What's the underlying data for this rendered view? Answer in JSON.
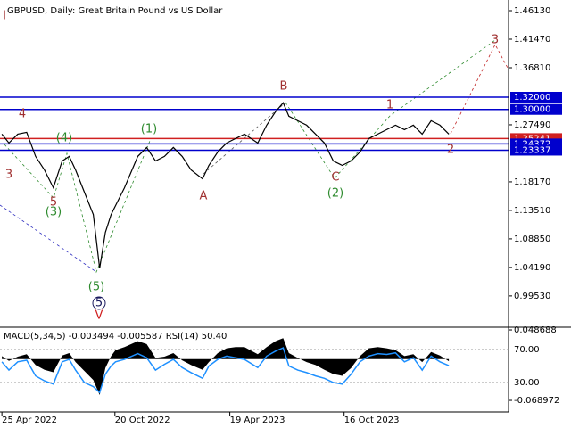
{
  "chart_data": {
    "type": "line",
    "title": "GBPUSD, Daily:  Great Britain Pound vs US Dollar",
    "x": [
      "2022-04-25",
      "2022-05-06",
      "2022-05-20",
      "2022-06-03",
      "2022-06-17",
      "2022-07-01",
      "2022-07-15",
      "2022-07-29",
      "2022-08-09",
      "2022-08-19",
      "2022-09-02",
      "2022-09-16",
      "2022-09-26",
      "2022-10-05",
      "2022-10-14",
      "2022-10-21",
      "2022-11-04",
      "2022-11-25",
      "2022-12-09",
      "2022-12-23",
      "2023-01-06",
      "2023-01-20",
      "2023-02-03",
      "2023-02-17",
      "2023-03-07",
      "2023-03-17",
      "2023-03-31",
      "2023-04-14",
      "2023-04-28",
      "2023-05-12",
      "2023-06-02",
      "2023-06-16",
      "2023-06-30",
      "2023-07-12",
      "2023-07-21",
      "2023-08-04",
      "2023-08-18",
      "2023-09-01",
      "2023-09-15",
      "2023-09-29",
      "2023-10-13",
      "2023-10-27",
      "2023-11-10",
      "2023-11-24",
      "2023-12-08",
      "2023-12-22",
      "2024-01-05",
      "2024-01-19",
      "2024-02-02",
      "2024-02-16",
      "2024-03-01",
      "2024-03-15",
      "2024-03-29"
    ],
    "series": [
      {
        "name": "GBPUSD",
        "color": "#000000",
        "values": [
          1.2597,
          1.2451,
          1.2597,
          1.2626,
          1.2232,
          1.2012,
          1.172,
          1.2159,
          1.2232,
          1.2012,
          1.1647,
          1.1282,
          1.0405,
          1.099,
          1.1282,
          1.1428,
          1.172,
          1.2232,
          1.2378,
          1.2159,
          1.2232,
          1.2378,
          1.2232,
          1.2012,
          1.1866,
          1.2085,
          1.2305,
          1.2451,
          1.2524,
          1.2597,
          1.2451,
          1.2743,
          1.2962,
          1.3108,
          1.2889,
          1.2816,
          1.2743,
          1.2597,
          1.2451,
          1.2159,
          1.2085,
          1.2159,
          1.2305,
          1.2524,
          1.2597,
          1.267,
          1.2743,
          1.267,
          1.2743,
          1.2597,
          1.2816,
          1.2743,
          1.2597
        ]
      }
    ],
    "xlim": [
      "2022-04-22",
      "2024-07-01"
    ],
    "xticks": [
      {
        "value": "2022-04-25",
        "label": "25 Apr 2022"
      },
      {
        "value": "2022-10-20",
        "label": "20 Oct 2022"
      },
      {
        "value": "2023-04-19",
        "label": "19 Apr 2023"
      },
      {
        "value": "2023-10-16",
        "label": "16 Oct 2023"
      }
    ],
    "ylim": [
      0.9456,
      1.4788
    ],
    "yticks": [
      {
        "value": 1.4613,
        "label": "1.46130"
      },
      {
        "value": 1.4147,
        "label": "1.41470"
      },
      {
        "value": 1.3681,
        "label": "1.36810"
      },
      {
        "value": 1.2749,
        "label": "1.27490"
      },
      {
        "value": 1.1817,
        "label": "1.18170"
      },
      {
        "value": 1.1351,
        "label": "1.13510"
      },
      {
        "value": 1.0885,
        "label": "1.08850"
      },
      {
        "value": 1.0419,
        "label": "1.04190"
      },
      {
        "value": 0.9953,
        "label": "0.99530"
      }
    ],
    "levels": [
      {
        "value": 1.32,
        "label": "1.32000",
        "color": "#0000cd"
      },
      {
        "value": 1.3,
        "label": "1.30000",
        "color": "#0000cd"
      },
      {
        "value": 1.25241,
        "label": "1.25241",
        "color": "#d02020"
      },
      {
        "value": 1.24372,
        "label": "1.24372",
        "color": "#0000cd"
      },
      {
        "value": 1.23337,
        "label": "1.23337",
        "color": "#0000cd"
      }
    ],
    "annotations": [
      {
        "text": "I",
        "color": "#a03030"
      },
      {
        "text": "4",
        "color": "#a03030"
      },
      {
        "text": "3",
        "color": "#a03030"
      },
      {
        "text": "5",
        "color": "#a03030"
      },
      {
        "text": "(3)",
        "color": "#2e8b2e"
      },
      {
        "text": "(4)",
        "color": "#2e8b2e"
      },
      {
        "text": "(1)",
        "color": "#2e8b2e"
      },
      {
        "text": "A",
        "color": "#a03030"
      },
      {
        "text": "B",
        "color": "#a03030"
      },
      {
        "text": "1",
        "color": "#a03030"
      },
      {
        "text": "2",
        "color": "#a03030"
      },
      {
        "text": "C",
        "color": "#a03030"
      },
      {
        "text": "(2)",
        "color": "#2e8b2e"
      },
      {
        "text": "3",
        "color": "#a03030"
      },
      {
        "text": "(5)",
        "color": "#2e8b2e"
      },
      {
        "text": "5",
        "color": "#1a1a5e"
      },
      {
        "text": "V",
        "color": "#d02020"
      }
    ],
    "indicator": {
      "label": "MACD(5,34,5) -0.003494 -0.005587 RSI(14) 50.40",
      "macd": {
        "name": "MACD",
        "color": "#000000",
        "values": [
          0.005,
          -0.003,
          0.004,
          0.008,
          -0.01,
          -0.018,
          -0.022,
          0.006,
          0.01,
          -0.005,
          -0.02,
          -0.035,
          -0.06,
          -0.015,
          0.005,
          0.015,
          0.02,
          0.03,
          0.025,
          0.002,
          0.004,
          0.01,
          -0.002,
          -0.01,
          -0.018,
          -0.005,
          0.01,
          0.018,
          0.02,
          0.02,
          0.008,
          0.02,
          0.03,
          0.035,
          0.01,
          0.002,
          -0.005,
          -0.01,
          -0.018,
          -0.025,
          -0.028,
          -0.015,
          0.005,
          0.018,
          0.02,
          0.018,
          0.015,
          0.005,
          0.008,
          -0.005,
          0.012,
          0.006,
          -0.003494
        ]
      },
      "rsi": {
        "name": "RSI",
        "color": "#1e90ff",
        "values": [
          55,
          45,
          55,
          57,
          38,
          32,
          28,
          55,
          58,
          45,
          30,
          25,
          18,
          40,
          50,
          55,
          58,
          65,
          60,
          45,
          52,
          58,
          48,
          42,
          35,
          50,
          58,
          62,
          60,
          58,
          48,
          62,
          68,
          72,
          50,
          45,
          42,
          38,
          35,
          30,
          28,
          40,
          55,
          62,
          65,
          64,
          66,
          55,
          60,
          45,
          62,
          55,
          50.4
        ]
      },
      "ylim": [
        -0.0883,
        0.0517
      ],
      "yticks": [
        0.048688,
        -0.068972
      ],
      "y2lim": [
        -5.7,
        95.9
      ],
      "y2ticks": [
        {
          "value": 70,
          "label": "70.00"
        },
        {
          "value": 30,
          "label": "30.00"
        }
      ]
    }
  }
}
